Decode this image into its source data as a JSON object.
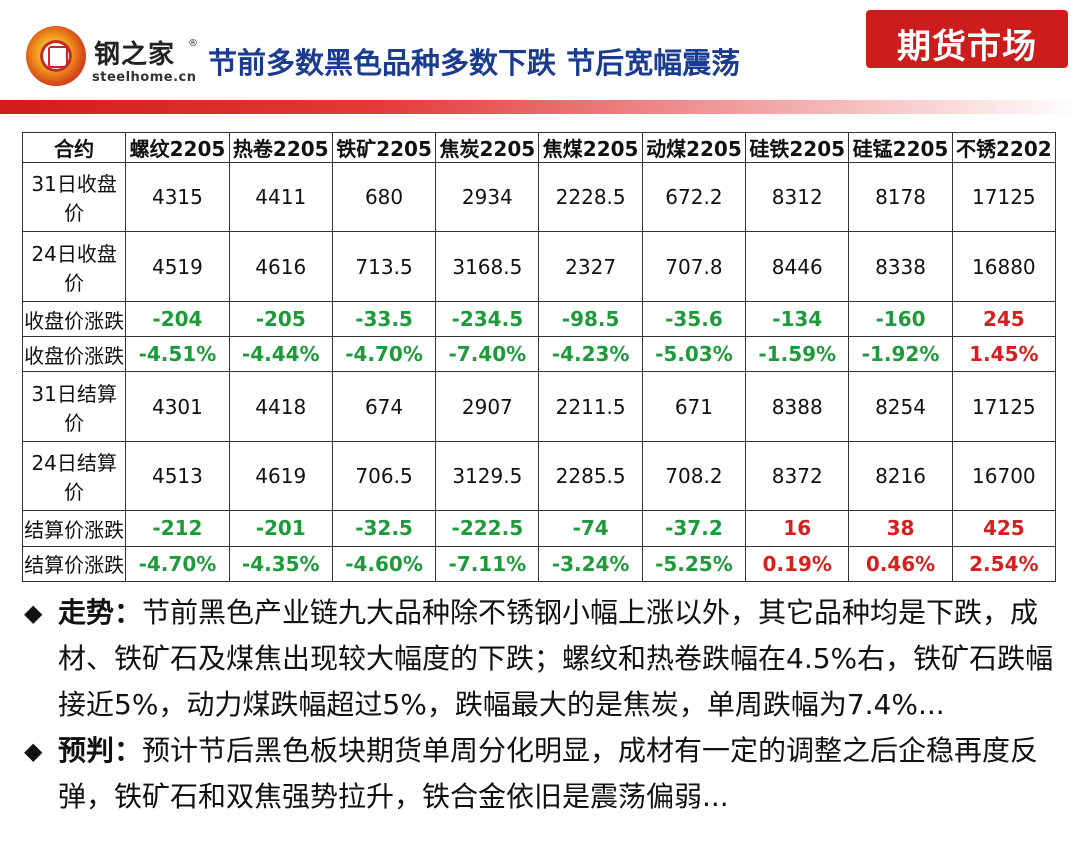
{
  "header": {
    "brand": "钢之家",
    "domain": "steelhome.cn",
    "registered": "®",
    "title": "节前多数黑色品种多数下跌 节后宽幅震荡",
    "tag": "期货市场"
  },
  "table": {
    "headers": [
      "合约",
      "螺纹2205",
      "热卷2205",
      "铁矿2205",
      "焦炭2205",
      "焦煤2205",
      "动煤2205",
      "硅铁2205",
      "硅锰2205",
      "不锈2202"
    ],
    "rows": [
      {
        "label": "31日收盘价",
        "cells": [
          {
            "v": "4315",
            "t": "norm"
          },
          {
            "v": "4411",
            "t": "norm"
          },
          {
            "v": "680",
            "t": "norm"
          },
          {
            "v": "2934",
            "t": "norm"
          },
          {
            "v": "2228.5",
            "t": "norm"
          },
          {
            "v": "672.2",
            "t": "norm"
          },
          {
            "v": "8312",
            "t": "norm"
          },
          {
            "v": "8178",
            "t": "norm"
          },
          {
            "v": "17125",
            "t": "norm"
          }
        ]
      },
      {
        "label": "24日收盘价",
        "cells": [
          {
            "v": "4519",
            "t": "norm"
          },
          {
            "v": "4616",
            "t": "norm"
          },
          {
            "v": "713.5",
            "t": "norm"
          },
          {
            "v": "3168.5",
            "t": "norm"
          },
          {
            "v": "2327",
            "t": "norm"
          },
          {
            "v": "707.8",
            "t": "norm"
          },
          {
            "v": "8446",
            "t": "norm"
          },
          {
            "v": "8338",
            "t": "norm"
          },
          {
            "v": "16880",
            "t": "norm"
          }
        ]
      },
      {
        "label": "收盘价涨跌",
        "cells": [
          {
            "v": "-204",
            "t": "neg"
          },
          {
            "v": "-205",
            "t": "neg"
          },
          {
            "v": "-33.5",
            "t": "neg"
          },
          {
            "v": "-234.5",
            "t": "neg"
          },
          {
            "v": "-98.5",
            "t": "neg"
          },
          {
            "v": "-35.6",
            "t": "neg"
          },
          {
            "v": "-134",
            "t": "neg"
          },
          {
            "v": "-160",
            "t": "neg"
          },
          {
            "v": "245",
            "t": "pos"
          }
        ]
      },
      {
        "label": "收盘价涨跌",
        "cells": [
          {
            "v": "-4.51%",
            "t": "neg"
          },
          {
            "v": "-4.44%",
            "t": "neg"
          },
          {
            "v": "-4.70%",
            "t": "neg"
          },
          {
            "v": "-7.40%",
            "t": "neg"
          },
          {
            "v": "-4.23%",
            "t": "neg"
          },
          {
            "v": "-5.03%",
            "t": "neg"
          },
          {
            "v": "-1.59%",
            "t": "neg"
          },
          {
            "v": "-1.92%",
            "t": "neg"
          },
          {
            "v": "1.45%",
            "t": "pos"
          }
        ]
      },
      {
        "label": "31日结算价",
        "cells": [
          {
            "v": "4301",
            "t": "norm"
          },
          {
            "v": "4418",
            "t": "norm"
          },
          {
            "v": "674",
            "t": "norm"
          },
          {
            "v": "2907",
            "t": "norm"
          },
          {
            "v": "2211.5",
            "t": "norm"
          },
          {
            "v": "671",
            "t": "norm"
          },
          {
            "v": "8388",
            "t": "norm"
          },
          {
            "v": "8254",
            "t": "norm"
          },
          {
            "v": "17125",
            "t": "norm"
          }
        ]
      },
      {
        "label": "24日结算价",
        "cells": [
          {
            "v": "4513",
            "t": "norm"
          },
          {
            "v": "4619",
            "t": "norm"
          },
          {
            "v": "706.5",
            "t": "norm"
          },
          {
            "v": "3129.5",
            "t": "norm"
          },
          {
            "v": "2285.5",
            "t": "norm"
          },
          {
            "v": "708.2",
            "t": "norm"
          },
          {
            "v": "8372",
            "t": "norm"
          },
          {
            "v": "8216",
            "t": "norm"
          },
          {
            "v": "16700",
            "t": "norm"
          }
        ]
      },
      {
        "label": "结算价涨跌",
        "cells": [
          {
            "v": "-212",
            "t": "neg"
          },
          {
            "v": "-201",
            "t": "neg"
          },
          {
            "v": "-32.5",
            "t": "neg"
          },
          {
            "v": "-222.5",
            "t": "neg"
          },
          {
            "v": "-74",
            "t": "neg"
          },
          {
            "v": "-37.2",
            "t": "neg"
          },
          {
            "v": "16",
            "t": "pos"
          },
          {
            "v": "38",
            "t": "pos"
          },
          {
            "v": "425",
            "t": "pos"
          }
        ]
      },
      {
        "label": "结算价涨跌",
        "cells": [
          {
            "v": "-4.70%",
            "t": "neg"
          },
          {
            "v": "-4.35%",
            "t": "neg"
          },
          {
            "v": "-4.60%",
            "t": "neg"
          },
          {
            "v": "-7.11%",
            "t": "neg"
          },
          {
            "v": "-3.24%",
            "t": "neg"
          },
          {
            "v": "-5.25%",
            "t": "neg"
          },
          {
            "v": "0.19%",
            "t": "pos"
          },
          {
            "v": "0.46%",
            "t": "pos"
          },
          {
            "v": "2.54%",
            "t": "pos"
          }
        ]
      }
    ]
  },
  "colors": {
    "down": "#1e9a3b",
    "up": "#d62020",
    "title": "#1a3b8f",
    "accent": "#cc1c1c"
  },
  "bullets": [
    {
      "marker": "◆",
      "label": "走势：",
      "text": "节前黑色产业链九大品种除不锈钢小幅上涨以外，其它品种均是下跌，成材、铁矿石及煤焦出现较大幅度的下跌；螺纹和热卷跌幅在4.5%右，铁矿石跌幅接近5%，动力煤跌幅超过5%，跌幅最大的是焦炭，单周跌幅为7.4%..."
    },
    {
      "marker": "◆",
      "label": "预判：",
      "text": "预计节后黑色板块期货单周分化明显，成材有一定的调整之后企稳再度反弹，铁矿石和双焦强势拉升，铁合金依旧是震荡偏弱..."
    }
  ]
}
